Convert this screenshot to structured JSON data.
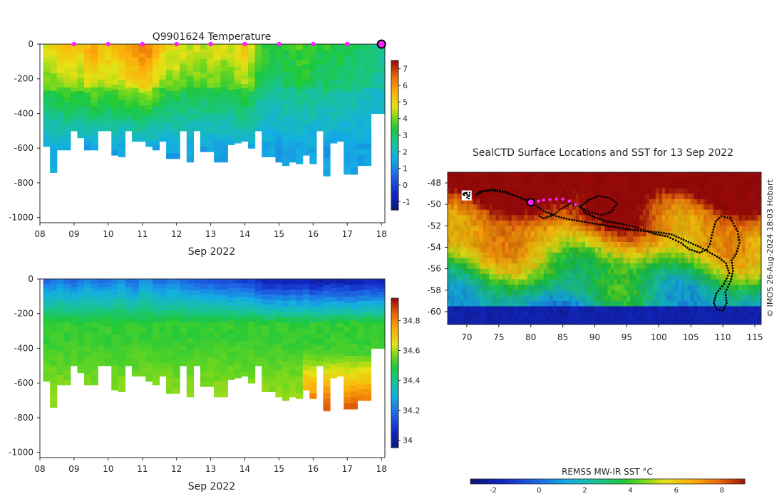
{
  "chart_data": [
    {
      "type": "heatmap",
      "panel": "temperature-section",
      "title": "Q9901624  Temperature",
      "x_ticks": [
        "08",
        "09",
        "10",
        "11",
        "12",
        "13",
        "14",
        "15",
        "16",
        "17",
        "18"
      ],
      "x_range": [
        8,
        18.1
      ],
      "xlabel": "Sep 2022",
      "y_ticks": [
        0,
        -200,
        -400,
        -600,
        -800,
        -1000
      ],
      "ylim": [
        -1030,
        0
      ],
      "colorbar_ticks": [
        7,
        6,
        5,
        4,
        3,
        2,
        1,
        0,
        -1
      ],
      "colorbar_range": [
        -1.5,
        7.5
      ],
      "profile_days": [
        8.2,
        8.4,
        8.6,
        8.8,
        9.0,
        9.2,
        9.4,
        9.6,
        9.8,
        10.0,
        10.2,
        10.4,
        10.6,
        10.8,
        11.0,
        11.2,
        11.4,
        11.6,
        11.8,
        12.0,
        12.2,
        12.4,
        12.6,
        12.8,
        13.0,
        13.2,
        13.4,
        13.6,
        13.8,
        14.0,
        14.2,
        14.4,
        14.6,
        14.8,
        15.0,
        15.2,
        15.4,
        15.6,
        15.8,
        16.0,
        16.2,
        16.4,
        16.6,
        16.8,
        17.0,
        17.2,
        17.4,
        17.6,
        17.8,
        18.0
      ],
      "profile_max_depth": [
        590,
        740,
        610,
        610,
        500,
        540,
        610,
        610,
        500,
        500,
        640,
        650,
        500,
        560,
        560,
        590,
        610,
        560,
        660,
        660,
        500,
        680,
        500,
        620,
        620,
        680,
        680,
        580,
        570,
        560,
        600,
        500,
        650,
        650,
        680,
        700,
        680,
        690,
        640,
        690,
        500,
        760,
        570,
        560,
        750,
        750,
        700,
        700,
        400,
        400
      ],
      "top_surface_temp": [
        4.8,
        5.0,
        5.2,
        5.4,
        5.4,
        5.2,
        5.6,
        5.8,
        5.6,
        5.4,
        5.4,
        5.6,
        6.0,
        6.2,
        6.4,
        6.2,
        5.6,
        5.2,
        5.0,
        5.0,
        4.8,
        4.6,
        4.8,
        4.6,
        4.8,
        4.8,
        4.6,
        4.6,
        5.0,
        5.4,
        4.8,
        4.0,
        3.6,
        3.4,
        3.4,
        3.6,
        3.6,
        3.8,
        3.8,
        3.6,
        3.4,
        3.6,
        3.4,
        3.4,
        3.2,
        3.2,
        3.0,
        3.0,
        2.8,
        2.8
      ],
      "surface_marker_days": [
        9,
        10,
        11,
        12,
        13,
        14,
        15,
        16,
        17
      ],
      "current_marker_day": 18.0
    },
    {
      "type": "heatmap",
      "panel": "salinity-section",
      "title": "",
      "x_ticks": [
        "08",
        "09",
        "10",
        "11",
        "12",
        "13",
        "14",
        "15",
        "16",
        "17",
        "18"
      ],
      "x_range": [
        8,
        18.1
      ],
      "xlabel": "Sep 2022",
      "y_ticks": [
        0,
        -200,
        -400,
        -600,
        -800,
        -1000
      ],
      "ylim": [
        -1030,
        0
      ],
      "colorbar_ticks": [
        34.8,
        34.6,
        34.4,
        34.2,
        34
      ],
      "colorbar_range": [
        33.95,
        34.95
      ],
      "surface_salinity": [
        34.18,
        34.2,
        34.22,
        34.2,
        34.18,
        34.2,
        34.22,
        34.2,
        34.18,
        34.2,
        34.22,
        34.24,
        34.2,
        34.18,
        34.26,
        34.24,
        34.2,
        34.18,
        34.2,
        34.22,
        34.18,
        34.16,
        34.15,
        34.14,
        34.14,
        34.12,
        34.12,
        34.12,
        34.12,
        34.1,
        34.1,
        34.05,
        34.02,
        34.02,
        34.02,
        34.0,
        34.02,
        34.02,
        34.04,
        34.0,
        34.0,
        34.02,
        34.02,
        34.0,
        34.02,
        34.0,
        34.02,
        34.04,
        34.02,
        34.02
      ]
    },
    {
      "type": "heatmap",
      "panel": "sst-map",
      "title": "SealCTD Surface Locations and SST for 13 Sep 2022",
      "x_ticks": [
        "70",
        "75",
        "80",
        "85",
        "90",
        "95",
        "100",
        "105",
        "110",
        "115"
      ],
      "xlim": [
        67,
        116
      ],
      "y_ticks": [
        "-48",
        "-50",
        "-52",
        "-54",
        "-56",
        "-58",
        "-60"
      ],
      "ylim": [
        -61.2,
        -47
      ],
      "colorbar_label": "REMSS MW-IR SST °C",
      "colorbar_ticks": [
        -2,
        0,
        2,
        4,
        6,
        8
      ],
      "colorbar_range": [
        -3,
        9
      ],
      "current_position": [
        80,
        -49.8
      ],
      "recent_positions": [
        [
          81.2,
          -49.7
        ],
        [
          82,
          -49.6
        ],
        [
          83,
          -49.55
        ],
        [
          84,
          -49.5
        ],
        [
          85,
          -49.5
        ],
        [
          86,
          -49.7
        ],
        [
          87,
          -50
        ]
      ],
      "track_points": [
        [
          80,
          -49.8
        ],
        [
          78,
          -49.3
        ],
        [
          76,
          -48.9
        ],
        [
          74,
          -48.7
        ],
        [
          72.5,
          -48.8
        ],
        [
          71.5,
          -49.1
        ],
        [
          72,
          -48.8
        ],
        [
          74,
          -48.6
        ],
        [
          76,
          -48.8
        ],
        [
          78,
          -49.3
        ],
        [
          80,
          -49.8
        ],
        [
          82,
          -50.6
        ],
        [
          84,
          -51.1
        ],
        [
          86,
          -51.4
        ],
        [
          88,
          -51.6
        ],
        [
          90,
          -51.8
        ],
        [
          92,
          -52.0
        ],
        [
          94,
          -52.2
        ],
        [
          96,
          -52.4
        ],
        [
          98,
          -52.5
        ],
        [
          100,
          -52.6
        ],
        [
          102,
          -52.8
        ],
        [
          103.5,
          -53.2
        ],
        [
          105,
          -53.6
        ],
        [
          106.5,
          -54.0
        ],
        [
          108,
          -54.5
        ],
        [
          109.5,
          -55.0
        ],
        [
          110.5,
          -55.5
        ],
        [
          111,
          -56.4
        ],
        [
          110.2,
          -57.4
        ],
        [
          109,
          -58.3
        ],
        [
          108.6,
          -59.2
        ],
        [
          109.1,
          -59.8
        ],
        [
          110,
          -59.9
        ],
        [
          110.6,
          -59.2
        ],
        [
          110.4,
          -58.2
        ],
        [
          111.2,
          -57.2
        ],
        [
          111.6,
          -56.2
        ],
        [
          111.4,
          -55.2
        ],
        [
          112.1,
          -54.6
        ],
        [
          112.6,
          -53.6
        ],
        [
          112.3,
          -52.5
        ],
        [
          111.2,
          -51.3
        ],
        [
          109.8,
          -51.1
        ],
        [
          108.9,
          -51.6
        ],
        [
          108.4,
          -52.6
        ],
        [
          108,
          -53.7
        ],
        [
          107.5,
          -54.2
        ],
        [
          106.4,
          -54.5
        ],
        [
          104.8,
          -54.2
        ],
        [
          103.5,
          -53.6
        ],
        [
          101.4,
          -53.0
        ],
        [
          99,
          -52.7
        ],
        [
          96.3,
          -52.1
        ],
        [
          94,
          -51.8
        ],
        [
          92,
          -51.6
        ],
        [
          90,
          -51.2
        ],
        [
          88.5,
          -50.8
        ],
        [
          87.8,
          -50.2
        ],
        [
          89,
          -49.6
        ],
        [
          90.6,
          -49.2
        ],
        [
          92.3,
          -49.4
        ],
        [
          93.5,
          -49.9
        ],
        [
          92.6,
          -50.7
        ],
        [
          91,
          -51.0
        ],
        [
          89.1,
          -50.7
        ],
        [
          87.6,
          -50.2
        ],
        [
          86.2,
          -49.9
        ],
        [
          84.8,
          -50.4
        ],
        [
          83.5,
          -51.0
        ],
        [
          82,
          -51.3
        ],
        [
          81,
          -51.0
        ]
      ],
      "annotation": "© IMOS 26-Aug-2024 18:03 Hobart"
    }
  ]
}
